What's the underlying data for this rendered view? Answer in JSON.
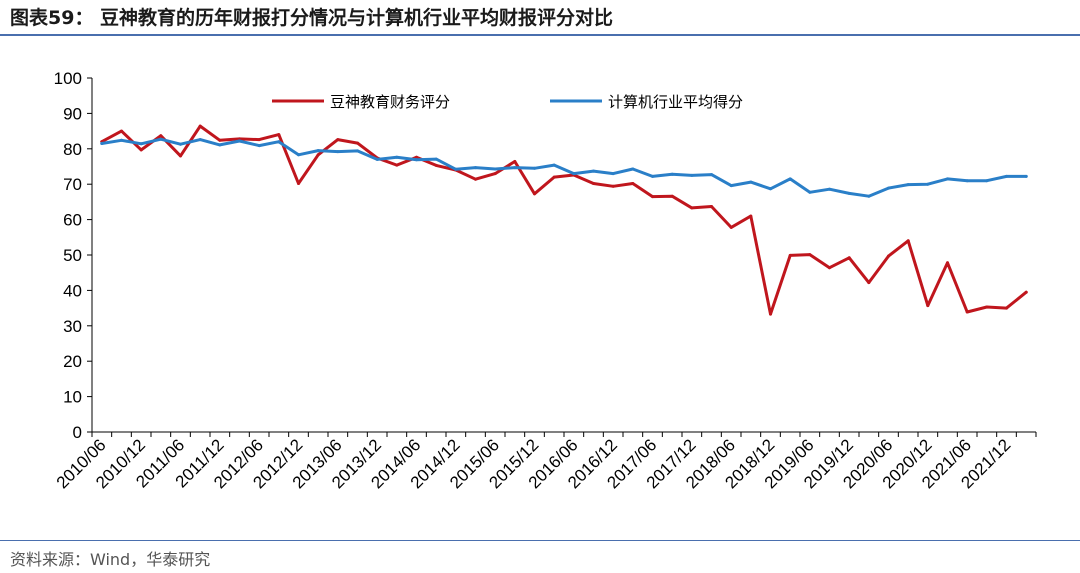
{
  "header": {
    "title": "图表59：  豆神教育的历年财报打分情况与计算机行业平均财报评分对比"
  },
  "footer": {
    "source": "资料来源：Wind，华泰研究"
  },
  "chart_data": {
    "type": "line",
    "title": "",
    "xlabel": "",
    "ylabel": "",
    "ylim": [
      0,
      100
    ],
    "yticks": [
      0,
      10,
      20,
      30,
      40,
      50,
      60,
      70,
      80,
      90,
      100
    ],
    "grid": false,
    "legend_position": "top",
    "x_tick_labels": [
      "2010/06",
      "2010/12",
      "2011/06",
      "2011/12",
      "2012/06",
      "2012/12",
      "2013/06",
      "2013/12",
      "2014/06",
      "2014/12",
      "2015/06",
      "2015/12",
      "2016/06",
      "2016/12",
      "2017/06",
      "2017/12",
      "2018/06",
      "2018/12",
      "2019/06",
      "2019/12",
      "2020/06",
      "2020/12",
      "2021/06",
      "2021/12"
    ],
    "x": [
      "2010/06",
      "2010/09",
      "2010/12",
      "2011/03",
      "2011/06",
      "2011/09",
      "2011/12",
      "2012/03",
      "2012/06",
      "2012/09",
      "2012/12",
      "2013/03",
      "2013/06",
      "2013/09",
      "2013/12",
      "2014/03",
      "2014/06",
      "2014/09",
      "2014/12",
      "2015/03",
      "2015/06",
      "2015/09",
      "2015/12",
      "2016/03",
      "2016/06",
      "2016/09",
      "2016/12",
      "2017/03",
      "2017/06",
      "2017/09",
      "2017/12",
      "2018/03",
      "2018/06",
      "2018/09",
      "2018/12",
      "2019/03",
      "2019/06",
      "2019/09",
      "2019/12",
      "2020/03",
      "2020/06",
      "2020/09",
      "2020/12",
      "2021/03",
      "2021/06",
      "2021/09",
      "2021/12",
      "2022/03"
    ],
    "series": [
      {
        "name": "豆神教育财务评分",
        "color": "#c0161d",
        "values": [
          82.0,
          85.0,
          79.7,
          83.7,
          78.0,
          86.4,
          82.4,
          82.8,
          82.6,
          84.0,
          70.2,
          78.3,
          82.6,
          81.6,
          77.4,
          75.4,
          77.6,
          75.3,
          74.0,
          71.4,
          73.0,
          76.4,
          67.3,
          72.0,
          72.6,
          70.2,
          69.4,
          70.2,
          66.5,
          66.6,
          63.3,
          63.7,
          57.8,
          61.0,
          33.3,
          49.9,
          50.1,
          46.4,
          49.2,
          42.2,
          49.7,
          54.0,
          35.7,
          47.8,
          33.9,
          35.3,
          35.0,
          39.5
        ]
      },
      {
        "name": "计算机行业平均得分",
        "color": "#2a7fc8",
        "values": [
          81.5,
          82.4,
          81.4,
          82.7,
          81.3,
          82.6,
          81.1,
          82.2,
          80.9,
          82.0,
          78.3,
          79.5,
          79.2,
          79.4,
          77.0,
          77.6,
          76.9,
          77.1,
          74.2,
          74.7,
          74.3,
          74.7,
          74.5,
          75.4,
          73.0,
          73.7,
          73.0,
          74.3,
          72.2,
          72.8,
          72.5,
          72.7,
          69.6,
          70.6,
          68.7,
          71.5,
          67.7,
          68.6,
          67.4,
          66.6,
          68.9,
          69.9,
          70.0,
          71.5,
          71.0,
          71.0,
          72.2,
          72.2
        ]
      }
    ]
  }
}
